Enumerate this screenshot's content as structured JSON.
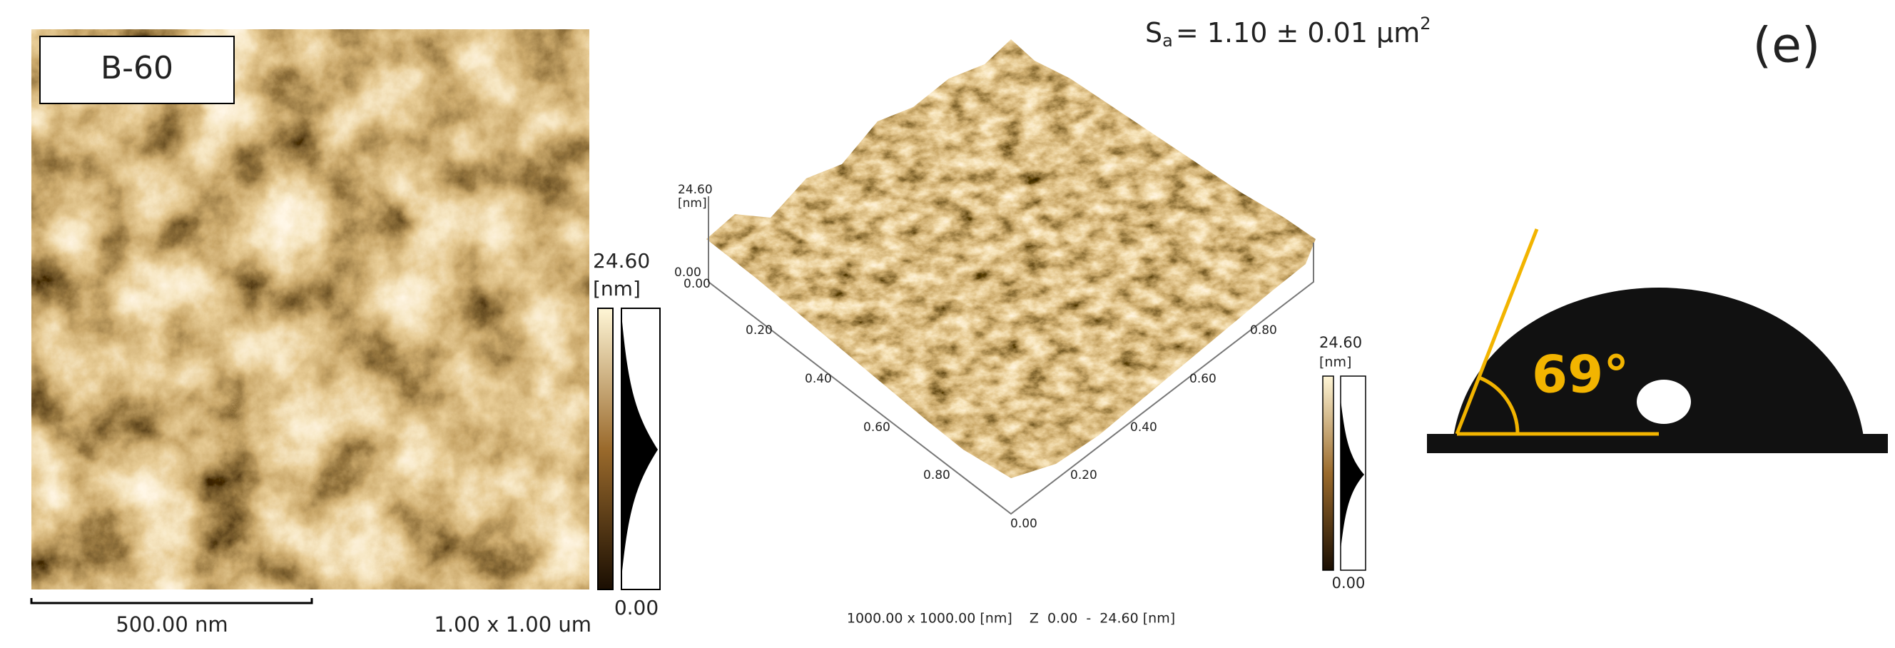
{
  "afm_2d": {
    "label": "B-60",
    "colorbar": {
      "max": "24.60",
      "unit": "[nm]",
      "min": "0.00"
    },
    "scale_bar": "500.00 nm",
    "scan_size": "1.00 x 1.00 um"
  },
  "afm_3d": {
    "z_axis": {
      "max": "24.60",
      "unit": "[nm]",
      "min": "0.00"
    },
    "left_axis_ticks": [
      "0.00",
      "0.20",
      "0.40",
      "0.60",
      "0.80"
    ],
    "right_axis_ticks": [
      "0.00",
      "0.20",
      "0.40",
      "0.60",
      "0.80"
    ],
    "colorbar": {
      "max": "24.60",
      "unit": "[nm]",
      "min": "0.00"
    },
    "caption": "1000.00 x 1000.00 [nm]    Z  0.00  -  24.60 [nm]"
  },
  "roughness": {
    "symbol": "S",
    "subscript": "a",
    "text": "= 1.10 ± 0.01 µm",
    "superscript": "2"
  },
  "panel_label": "(e)",
  "contact_angle": {
    "label": "69°"
  }
}
